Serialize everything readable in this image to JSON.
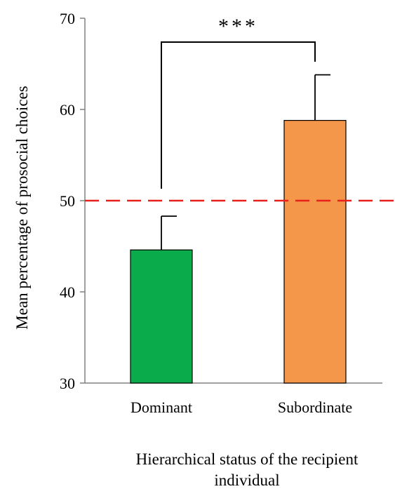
{
  "chart_data": {
    "type": "bar",
    "categories": [
      "Dominant",
      "Subordinate"
    ],
    "values": [
      44.6,
      58.8
    ],
    "error_upper": [
      48.3,
      63.8
    ],
    "bar_colors": [
      "#0aab4b",
      "#f4974a"
    ],
    "ylabel": "Mean percentage of prosocial choices",
    "xlabel": "Hierarchical status of the recipient individual",
    "xlabel_lines": [
      "Hierarchical status of the recipient",
      "individual"
    ],
    "ylim": [
      30,
      70
    ],
    "yticks": [
      30,
      40,
      50,
      60,
      70
    ],
    "reference_line": {
      "y": 50,
      "color": "#e8211c",
      "style": "dashed"
    },
    "significance": {
      "label": "***",
      "between": [
        "Dominant",
        "Subordinate"
      ]
    },
    "grid": false
  }
}
